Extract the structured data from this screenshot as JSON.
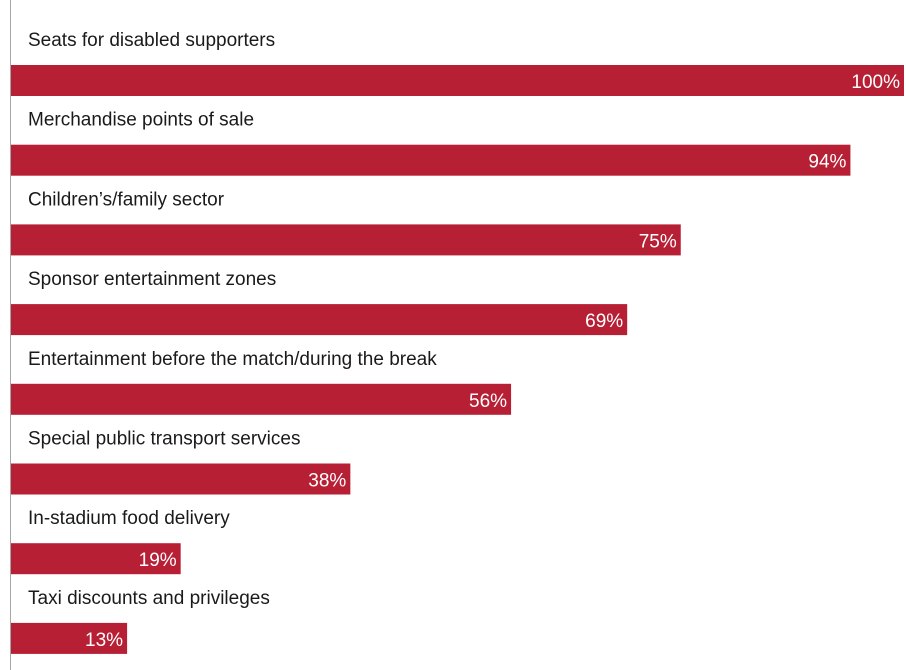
{
  "chart_data": {
    "type": "bar",
    "orientation": "horizontal",
    "categories": [
      "Seats for disabled supporters",
      "Merchandise points of sale",
      "Children’s/family sector",
      "Sponsor entertainment zones",
      "Entertainment before the match/during the break",
      "Special public transport services",
      "In-stadium food delivery",
      "Taxi discounts and privileges"
    ],
    "values": [
      100,
      94,
      75,
      69,
      56,
      38,
      19,
      13
    ],
    "value_labels": [
      "100%",
      "94%",
      "75%",
      "69%",
      "56%",
      "38%",
      "19%",
      "13%"
    ],
    "title": "",
    "xlabel": "",
    "ylabel": "",
    "unit": "%",
    "grid": false,
    "bar_color": "#b71f35",
    "label_color": "#ffffff"
  }
}
